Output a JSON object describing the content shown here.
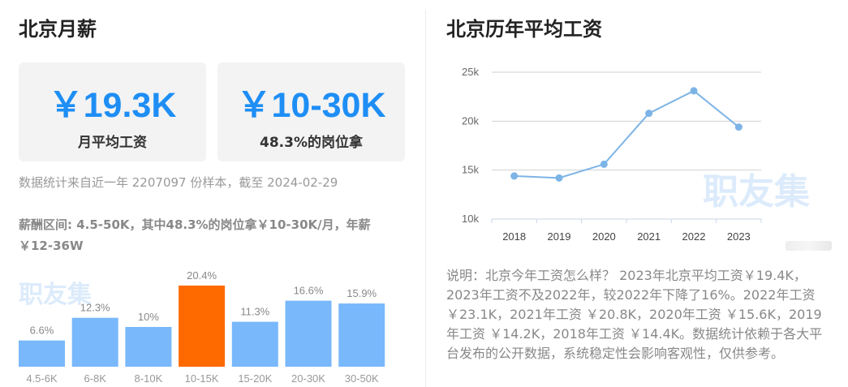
{
  "left": {
    "title": "北京月薪",
    "cards": [
      {
        "value": "￥19.3K",
        "label": "月平均工资"
      },
      {
        "value": "￥10-30K",
        "label": "48.3%的岗位拿"
      }
    ],
    "note": "数据统计来自近一年 2207097 份样本，截至 2024-02-29",
    "range_text": "薪酬区间: 4.5-50K，其中48.3%的岗位拿￥10-30K/月，年薪￥12-36W",
    "watermark": "职友集"
  },
  "right": {
    "title": "北京历年平均工资",
    "watermark": "职友集",
    "explanation": "说明：北京今年工资怎么样？ 2023年北京平均工资￥19.4K，2023年工资不及2022年，较2022年下降了16%。2022年工资 ￥23.1K，2021年工资 ￥20.8K，2020年工资 ￥15.6K，2019年工资 ￥14.2K，2018年工资 ￥14.4K。数据统计依赖于各大平台发布的公开数据，系统稳定性会影响客观性，仅供参考。"
  },
  "chart_data": [
    {
      "type": "bar",
      "categories": [
        "4.5-6K",
        "6-8K",
        "8-10K",
        "10-15K",
        "15-20K",
        "20-30K",
        "30-50K"
      ],
      "values": [
        6.6,
        12.3,
        10,
        20.4,
        11.3,
        16.6,
        15.9
      ],
      "value_labels": [
        "6.6%",
        "12.3%",
        "10%",
        "20.4%",
        "11.3%",
        "16.6%",
        "15.9%"
      ],
      "highlight_index": 3,
      "colors": {
        "bar": "#79b8fb",
        "highlight": "#ff6a00"
      },
      "title": "",
      "xlabel": "",
      "ylabel": ""
    },
    {
      "type": "line",
      "x": [
        "2018",
        "2019",
        "2020",
        "2021",
        "2022",
        "2023"
      ],
      "values": [
        14.4,
        14.2,
        15.6,
        20.8,
        23.1,
        19.4
      ],
      "ylim": [
        10,
        25
      ],
      "yticks": [
        10,
        15,
        20,
        25
      ],
      "ytick_labels": [
        "10k",
        "15k",
        "20k",
        "25k"
      ],
      "grid": true,
      "colors": {
        "line": "#7db4e6"
      },
      "title": "",
      "xlabel": "",
      "ylabel": ""
    }
  ]
}
